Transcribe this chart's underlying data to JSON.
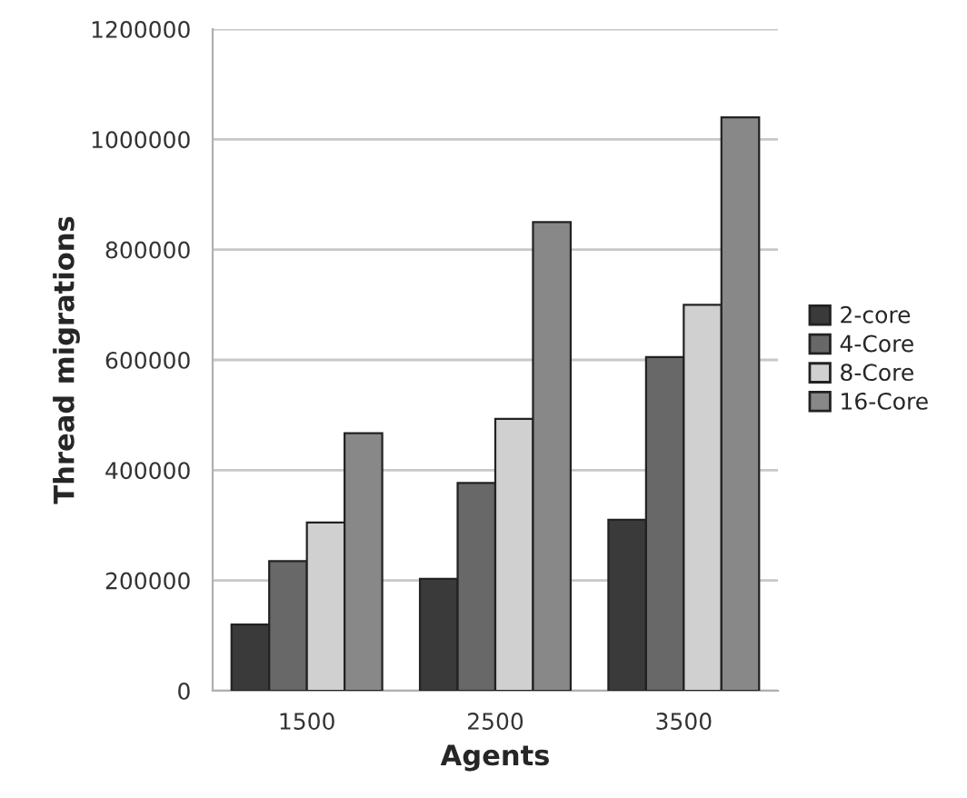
{
  "chart_data": {
    "type": "bar",
    "xlabel": "Agents",
    "ylabel": "Thread migrations",
    "categories": [
      "1500",
      "2500",
      "3500"
    ],
    "series": [
      {
        "name": "2-core",
        "color": "#3a3a3a",
        "values": [
          120000,
          203000,
          310000
        ]
      },
      {
        "name": "4-Core",
        "color": "#686868",
        "values": [
          235000,
          377000,
          605000
        ]
      },
      {
        "name": "8-Core",
        "color": "#d0d0d0",
        "values": [
          305000,
          493000,
          700000
        ]
      },
      {
        "name": "16-Core",
        "color": "#888888",
        "values": [
          467000,
          850000,
          1040000
        ]
      }
    ],
    "ylim": [
      0,
      1200000
    ],
    "yticks": [
      0,
      200000,
      400000,
      600000,
      800000,
      1000000,
      1200000
    ],
    "grid": "y",
    "legend": "right"
  }
}
